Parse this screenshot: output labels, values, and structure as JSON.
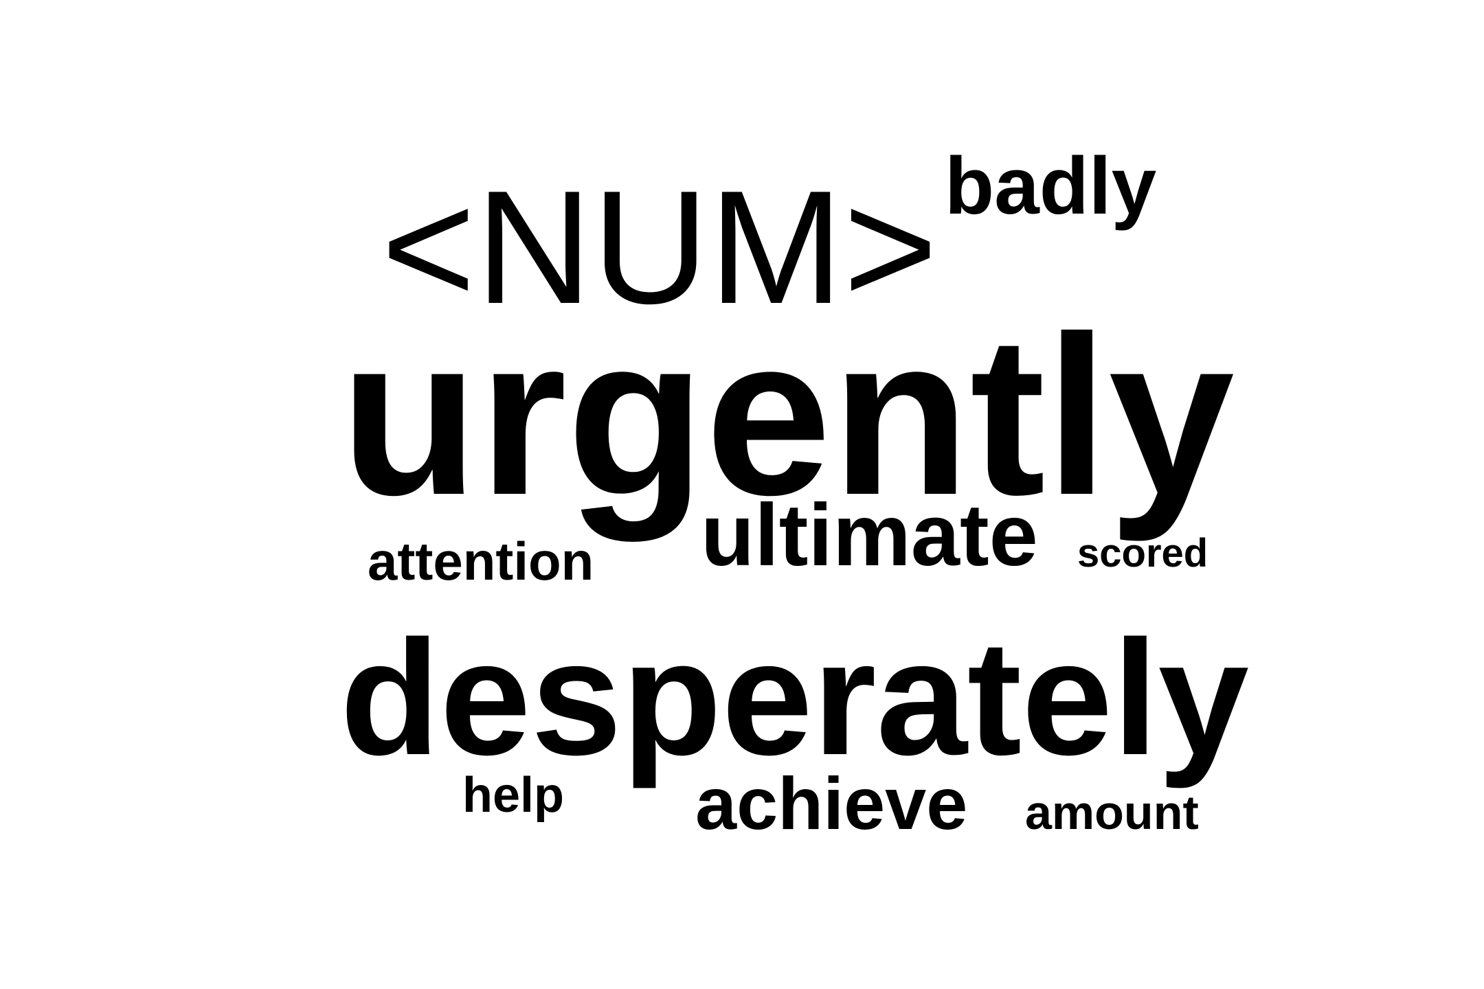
{
  "word_cloud": {
    "words": [
      {
        "text": "<NUM>",
        "rank": 3
      },
      {
        "text": "badly",
        "rank": 5
      },
      {
        "text": "urgently",
        "rank": 1
      },
      {
        "text": "attention",
        "rank": 8
      },
      {
        "text": "ultimate",
        "rank": 4
      },
      {
        "text": "scored",
        "rank": 10
      },
      {
        "text": "desperately",
        "rank": 2
      },
      {
        "text": "help",
        "rank": 9
      },
      {
        "text": "achieve",
        "rank": 6
      },
      {
        "text": "amount",
        "rank": 7
      }
    ],
    "text_color": "#000000",
    "background_color": "#ffffff"
  }
}
